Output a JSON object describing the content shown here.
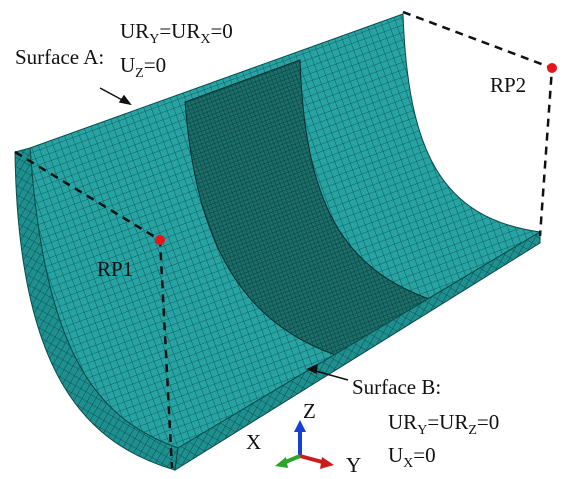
{
  "surface_a": {
    "title": "Surface A:",
    "line1": [
      "UR",
      "Y",
      "=UR",
      "X",
      "=0"
    ],
    "line2": [
      "U",
      "Z",
      "=0"
    ]
  },
  "rp1": "RP1",
  "rp2": "RP2",
  "surface_b": {
    "title": "Surface B:",
    "line1": [
      "UR",
      "Y",
      "=UR",
      "Z",
      "=0"
    ],
    "line2": [
      "U",
      "X",
      "=0"
    ]
  },
  "axes": {
    "z": "Z",
    "x": "X",
    "y": "Y"
  }
}
